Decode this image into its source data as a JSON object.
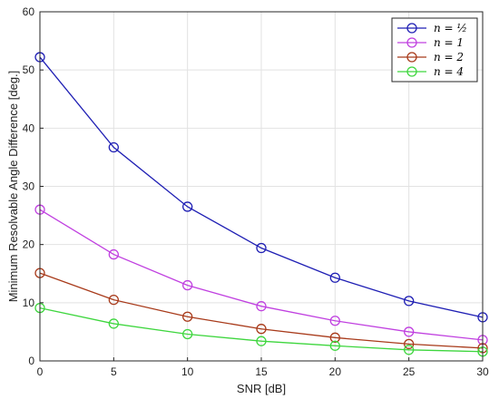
{
  "chart_data": {
    "type": "line",
    "title": "",
    "xlabel": "SNR [dB]",
    "ylabel": "Minimum Resolvable Angle Difference [deg.]",
    "x": [
      0,
      5,
      10,
      15,
      20,
      25,
      30
    ],
    "xticks": [
      "0",
      "5",
      "10",
      "15",
      "20",
      "25",
      "30"
    ],
    "yticks": [
      "0",
      "10",
      "20",
      "30",
      "40",
      "50",
      "60"
    ],
    "xlim": [
      0,
      30
    ],
    "ylim": [
      0,
      60
    ],
    "grid": true,
    "legend_position": "top-right",
    "marker": "circle",
    "series": [
      {
        "name": "n = ½",
        "color": "#1f1fb4",
        "values": [
          52.2,
          36.7,
          26.5,
          19.4,
          14.3,
          10.3,
          7.5
        ]
      },
      {
        "name": "n = 1",
        "color": "#c040e0",
        "values": [
          26.0,
          18.3,
          13.0,
          9.4,
          6.9,
          5.0,
          3.6
        ]
      },
      {
        "name": "n = 2",
        "color": "#a83a1a",
        "values": [
          15.1,
          10.5,
          7.6,
          5.5,
          4.0,
          2.9,
          2.2
        ]
      },
      {
        "name": "n = 4",
        "color": "#3ed63e",
        "values": [
          9.1,
          6.4,
          4.6,
          3.4,
          2.6,
          1.9,
          1.6
        ]
      }
    ]
  }
}
